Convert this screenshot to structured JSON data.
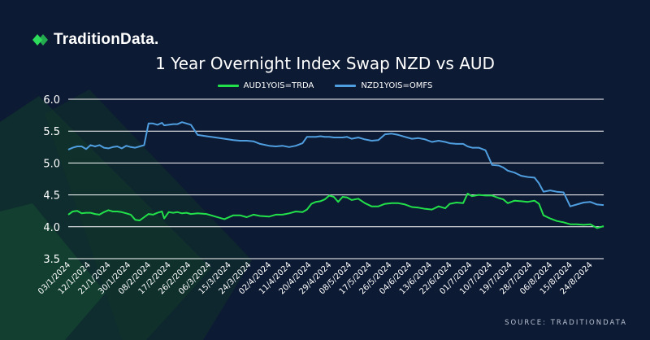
{
  "brand": {
    "name": "TraditionData.",
    "color": "#2ddc5a"
  },
  "source_text": "SOURCE: TRADITIONDATA",
  "chart_data": {
    "type": "line",
    "title": "1 Year Overnight Index Swap NZD vs AUD",
    "ylim": [
      3.5,
      6.0
    ],
    "yticks": [
      "6.0",
      "5.5",
      "5.0",
      "4.5",
      "4.0",
      "3.5"
    ],
    "grid": true,
    "legend_position": "top-center",
    "xtick_labels": [
      "03/1/2024",
      "12/1/2024",
      "21/1/2024",
      "30/1/2024",
      "08/2/2024",
      "17/2/2024",
      "26/2/2024",
      "06/3/2024",
      "15/3/2024",
      "24/3/2024",
      "02/4/2024",
      "11/4/2024",
      "20/4/2024",
      "29/4/2024",
      "08/5/2024",
      "17/5/2024",
      "26/5/2024",
      "04/6/2024",
      "13/6/2024",
      "22/6/2024",
      "01/7/2024",
      "10/7/2024",
      "19/7/2024",
      "28/7/2024",
      "06/8/2024",
      "15/8/2024",
      "24/8/2024"
    ],
    "x_start": "03/1/2024",
    "x_end": "30/8/2024",
    "series": [
      {
        "name": "AUD1YOIS=TRDA",
        "color": "#22e04a",
        "points": [
          [
            "03/1/2024",
            4.19
          ],
          [
            "05/1/2024",
            4.24
          ],
          [
            "07/1/2024",
            4.25
          ],
          [
            "09/1/2024",
            4.21
          ],
          [
            "11/1/2024",
            4.22
          ],
          [
            "13/1/2024",
            4.22
          ],
          [
            "15/1/2024",
            4.2
          ],
          [
            "17/1/2024",
            4.19
          ],
          [
            "19/1/2024",
            4.23
          ],
          [
            "21/1/2024",
            4.26
          ],
          [
            "23/1/2024",
            4.24
          ],
          [
            "25/1/2024",
            4.24
          ],
          [
            "27/1/2024",
            4.23
          ],
          [
            "29/1/2024",
            4.21
          ],
          [
            "31/1/2024",
            4.19
          ],
          [
            "02/2/2024",
            4.11
          ],
          [
            "04/2/2024",
            4.1
          ],
          [
            "06/2/2024",
            4.15
          ],
          [
            "08/2/2024",
            4.2
          ],
          [
            "10/2/2024",
            4.19
          ],
          [
            "12/2/2024",
            4.22
          ],
          [
            "14/2/2024",
            4.24
          ],
          [
            "15/2/2024",
            4.13
          ],
          [
            "17/2/2024",
            4.23
          ],
          [
            "19/2/2024",
            4.22
          ],
          [
            "21/2/2024",
            4.23
          ],
          [
            "23/2/2024",
            4.21
          ],
          [
            "25/2/2024",
            4.22
          ],
          [
            "27/2/2024",
            4.2
          ],
          [
            "01/3/2024",
            4.21
          ],
          [
            "05/3/2024",
            4.2
          ],
          [
            "09/3/2024",
            4.16
          ],
          [
            "13/3/2024",
            4.12
          ],
          [
            "17/3/2024",
            4.18
          ],
          [
            "20/3/2024",
            4.18
          ],
          [
            "23/3/2024",
            4.15
          ],
          [
            "26/3/2024",
            4.19
          ],
          [
            "29/3/2024",
            4.17
          ],
          [
            "02/4/2024",
            4.16
          ],
          [
            "05/4/2024",
            4.19
          ],
          [
            "08/4/2024",
            4.19
          ],
          [
            "11/4/2024",
            4.21
          ],
          [
            "14/4/2024",
            4.24
          ],
          [
            "17/4/2024",
            4.23
          ],
          [
            "19/4/2024",
            4.27
          ],
          [
            "21/4/2024",
            4.36
          ],
          [
            "23/4/2024",
            4.39
          ],
          [
            "25/4/2024",
            4.4
          ],
          [
            "27/4/2024",
            4.43
          ],
          [
            "29/4/2024",
            4.49
          ],
          [
            "01/5/2024",
            4.47
          ],
          [
            "03/5/2024",
            4.39
          ],
          [
            "05/5/2024",
            4.47
          ],
          [
            "07/5/2024",
            4.46
          ],
          [
            "09/5/2024",
            4.42
          ],
          [
            "12/5/2024",
            4.44
          ],
          [
            "15/5/2024",
            4.37
          ],
          [
            "18/5/2024",
            4.32
          ],
          [
            "21/5/2024",
            4.32
          ],
          [
            "24/5/2024",
            4.36
          ],
          [
            "27/5/2024",
            4.37
          ],
          [
            "30/5/2024",
            4.37
          ],
          [
            "02/6/2024",
            4.35
          ],
          [
            "05/6/2024",
            4.31
          ],
          [
            "08/6/2024",
            4.3
          ],
          [
            "11/6/2024",
            4.28
          ],
          [
            "14/6/2024",
            4.27
          ],
          [
            "17/6/2024",
            4.32
          ],
          [
            "20/6/2024",
            4.29
          ],
          [
            "22/6/2024",
            4.36
          ],
          [
            "25/6/2024",
            4.38
          ],
          [
            "28/6/2024",
            4.37
          ],
          [
            "30/6/2024",
            4.52
          ],
          [
            "02/7/2024",
            4.48
          ],
          [
            "05/7/2024",
            4.5
          ],
          [
            "08/7/2024",
            4.49
          ],
          [
            "11/7/2024",
            4.49
          ],
          [
            "14/7/2024",
            4.45
          ],
          [
            "16/7/2024",
            4.43
          ],
          [
            "18/7/2024",
            4.37
          ],
          [
            "21/7/2024",
            4.41
          ],
          [
            "24/7/2024",
            4.4
          ],
          [
            "27/7/2024",
            4.39
          ],
          [
            "30/7/2024",
            4.41
          ],
          [
            "01/8/2024",
            4.36
          ],
          [
            "03/8/2024",
            4.18
          ],
          [
            "06/8/2024",
            4.13
          ],
          [
            "09/8/2024",
            4.09
          ],
          [
            "12/8/2024",
            4.07
          ],
          [
            "15/8/2024",
            4.04
          ],
          [
            "18/8/2024",
            4.04
          ],
          [
            "21/8/2024",
            4.03
          ],
          [
            "24/8/2024",
            4.04
          ],
          [
            "27/8/2024",
            3.98
          ],
          [
            "30/8/2024",
            4.01
          ]
        ]
      },
      {
        "name": "NZD1YOIS=OMFS",
        "color": "#4f9ee0",
        "points": [
          [
            "03/1/2024",
            5.21
          ],
          [
            "05/1/2024",
            5.24
          ],
          [
            "07/1/2024",
            5.26
          ],
          [
            "09/1/2024",
            5.26
          ],
          [
            "11/1/2024",
            5.22
          ],
          [
            "13/1/2024",
            5.28
          ],
          [
            "15/1/2024",
            5.26
          ],
          [
            "17/1/2024",
            5.28
          ],
          [
            "19/1/2024",
            5.24
          ],
          [
            "21/1/2024",
            5.23
          ],
          [
            "23/1/2024",
            5.25
          ],
          [
            "25/1/2024",
            5.26
          ],
          [
            "27/1/2024",
            5.23
          ],
          [
            "29/1/2024",
            5.27
          ],
          [
            "31/1/2024",
            5.25
          ],
          [
            "02/2/2024",
            5.24
          ],
          [
            "04/2/2024",
            5.26
          ],
          [
            "06/2/2024",
            5.28
          ],
          [
            "08/2/2024",
            5.62
          ],
          [
            "10/2/2024",
            5.62
          ],
          [
            "12/2/2024",
            5.6
          ],
          [
            "14/2/2024",
            5.63
          ],
          [
            "15/2/2024",
            5.59
          ],
          [
            "17/2/2024",
            5.6
          ],
          [
            "19/2/2024",
            5.61
          ],
          [
            "21/2/2024",
            5.61
          ],
          [
            "23/2/2024",
            5.64
          ],
          [
            "25/2/2024",
            5.62
          ],
          [
            "27/2/2024",
            5.6
          ],
          [
            "01/3/2024",
            5.44
          ],
          [
            "05/3/2024",
            5.42
          ],
          [
            "09/3/2024",
            5.4
          ],
          [
            "13/3/2024",
            5.38
          ],
          [
            "17/3/2024",
            5.36
          ],
          [
            "20/3/2024",
            5.35
          ],
          [
            "23/3/2024",
            5.35
          ],
          [
            "26/3/2024",
            5.34
          ],
          [
            "29/3/2024",
            5.3
          ],
          [
            "02/4/2024",
            5.27
          ],
          [
            "05/4/2024",
            5.26
          ],
          [
            "08/4/2024",
            5.27
          ],
          [
            "11/4/2024",
            5.25
          ],
          [
            "14/4/2024",
            5.27
          ],
          [
            "17/4/2024",
            5.31
          ],
          [
            "19/4/2024",
            5.41
          ],
          [
            "21/4/2024",
            5.41
          ],
          [
            "23/4/2024",
            5.41
          ],
          [
            "25/4/2024",
            5.42
          ],
          [
            "27/4/2024",
            5.41
          ],
          [
            "29/4/2024",
            5.41
          ],
          [
            "01/5/2024",
            5.4
          ],
          [
            "03/5/2024",
            5.4
          ],
          [
            "05/5/2024",
            5.4
          ],
          [
            "07/5/2024",
            5.41
          ],
          [
            "09/5/2024",
            5.38
          ],
          [
            "12/5/2024",
            5.4
          ],
          [
            "15/5/2024",
            5.37
          ],
          [
            "18/5/2024",
            5.35
          ],
          [
            "21/5/2024",
            5.36
          ],
          [
            "24/5/2024",
            5.45
          ],
          [
            "27/5/2024",
            5.46
          ],
          [
            "30/5/2024",
            5.44
          ],
          [
            "02/6/2024",
            5.41
          ],
          [
            "05/6/2024",
            5.38
          ],
          [
            "08/6/2024",
            5.39
          ],
          [
            "11/6/2024",
            5.37
          ],
          [
            "14/6/2024",
            5.33
          ],
          [
            "17/6/2024",
            5.35
          ],
          [
            "20/6/2024",
            5.33
          ],
          [
            "22/6/2024",
            5.31
          ],
          [
            "25/6/2024",
            5.3
          ],
          [
            "28/6/2024",
            5.3
          ],
          [
            "30/6/2024",
            5.26
          ],
          [
            "02/7/2024",
            5.24
          ],
          [
            "05/7/2024",
            5.24
          ],
          [
            "08/7/2024",
            5.2
          ],
          [
            "11/7/2024",
            4.97
          ],
          [
            "14/7/2024",
            4.96
          ],
          [
            "16/7/2024",
            4.93
          ],
          [
            "18/7/2024",
            4.88
          ],
          [
            "21/7/2024",
            4.85
          ],
          [
            "24/7/2024",
            4.8
          ],
          [
            "27/7/2024",
            4.78
          ],
          [
            "30/7/2024",
            4.77
          ],
          [
            "01/8/2024",
            4.68
          ],
          [
            "03/8/2024",
            4.55
          ],
          [
            "06/8/2024",
            4.57
          ],
          [
            "09/8/2024",
            4.55
          ],
          [
            "12/8/2024",
            4.54
          ],
          [
            "15/8/2024",
            4.32
          ],
          [
            "18/8/2024",
            4.35
          ],
          [
            "21/8/2024",
            4.38
          ],
          [
            "24/8/2024",
            4.39
          ],
          [
            "27/8/2024",
            4.35
          ],
          [
            "30/8/2024",
            4.34
          ]
        ]
      }
    ]
  }
}
